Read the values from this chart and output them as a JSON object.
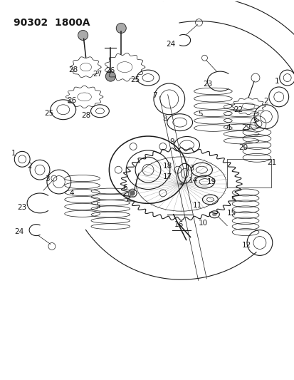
{
  "title": "90302  1800A",
  "bg_color": "#ffffff",
  "line_color": "#1a1a1a",
  "fig_width": 4.14,
  "fig_height": 5.33,
  "dpi": 100
}
